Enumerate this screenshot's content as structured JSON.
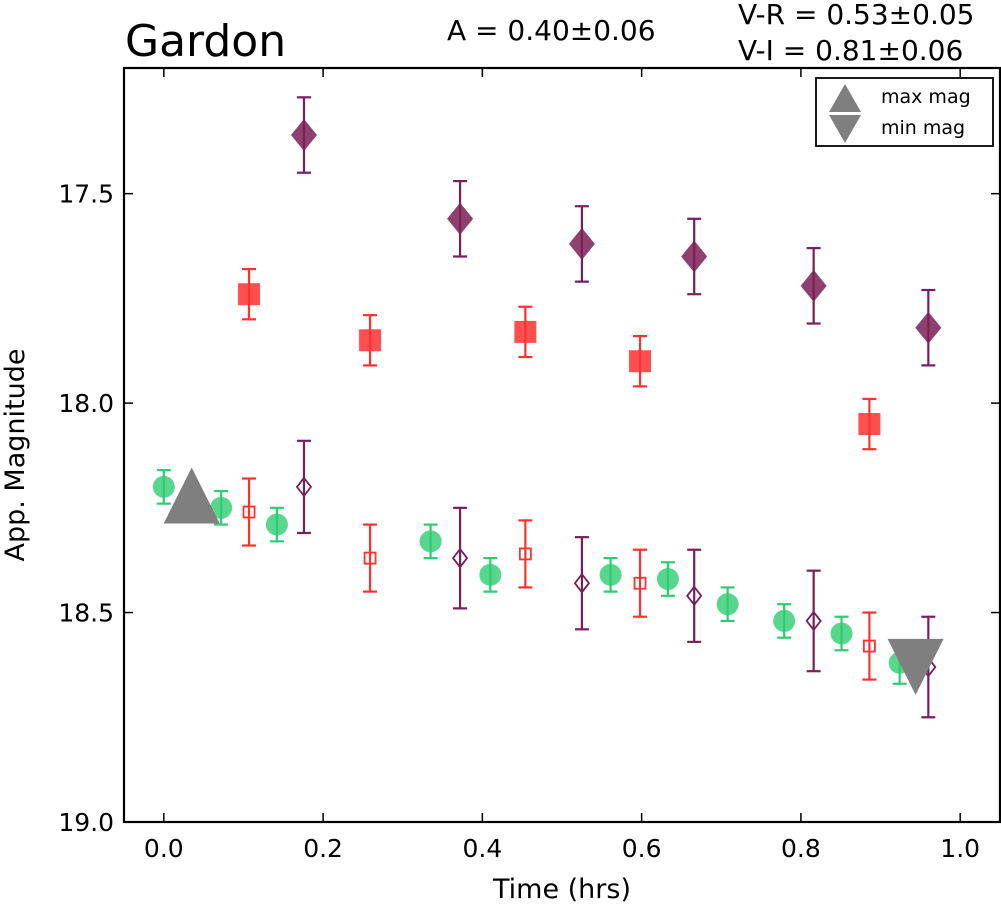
{
  "chart_data": {
    "type": "scatter",
    "title": "Gardon",
    "annotations": {
      "amplitude": "A  = 0.40±0.06",
      "v_r": "V-R = 0.53±0.05",
      "v_i": "V-I  = 0.81±0.06"
    },
    "xlabel": "Time (hrs)",
    "ylabel": "App. Magnitude",
    "xlim": [
      -0.05,
      1.05
    ],
    "ylim": [
      19.0,
      17.2
    ],
    "y_inverted": true,
    "xticks": [
      0.0,
      0.2,
      0.4,
      0.6,
      0.8,
      1.0
    ],
    "xtick_labels": [
      "0.0",
      "0.2",
      "0.4",
      "0.6",
      "0.8",
      "1.0"
    ],
    "yticks": [
      17.5,
      18.0,
      18.5,
      19.0
    ],
    "ytick_labels": [
      "17.5",
      "18.0",
      "18.5",
      "19.0"
    ],
    "grid": false,
    "legend": {
      "placement": "top-right",
      "entries": [
        {
          "label": "max mag",
          "marker": "triangle-up",
          "color": "#7f7f7f"
        },
        {
          "label": "min mag",
          "marker": "triangle-down",
          "color": "#7f7f7f"
        }
      ]
    },
    "series": [
      {
        "marker": "circle",
        "filled": true,
        "color": "#2ecc71",
        "x": [
          0.0,
          0.072,
          0.142,
          0.335,
          0.41,
          0.561,
          0.633,
          0.708,
          0.779,
          0.851,
          0.924
        ],
        "y": [
          18.2,
          18.25,
          18.29,
          18.33,
          18.41,
          18.41,
          18.42,
          18.48,
          18.52,
          18.55,
          18.62
        ],
        "err": [
          0.04,
          0.04,
          0.04,
          0.04,
          0.04,
          0.04,
          0.04,
          0.04,
          0.04,
          0.04,
          0.05
        ]
      },
      {
        "marker": "square",
        "filled": true,
        "color": "#ff3030",
        "x": [
          0.107,
          0.259,
          0.454,
          0.598,
          0.886
        ],
        "y": [
          17.74,
          17.85,
          17.83,
          17.9,
          18.05
        ],
        "err": [
          0.06,
          0.06,
          0.06,
          0.06,
          0.06
        ]
      },
      {
        "marker": "diamond",
        "filled": true,
        "color": "#7a1f55",
        "x": [
          0.176,
          0.372,
          0.525,
          0.666,
          0.816,
          0.96
        ],
        "y": [
          17.36,
          17.56,
          17.62,
          17.65,
          17.72,
          17.82
        ],
        "err": [
          0.09,
          0.09,
          0.09,
          0.09,
          0.09,
          0.09
        ]
      },
      {
        "marker": "square",
        "filled": false,
        "color": "#ff3030",
        "x": [
          0.107,
          0.259,
          0.454,
          0.598,
          0.886
        ],
        "y": [
          18.26,
          18.37,
          18.36,
          18.43,
          18.58
        ],
        "err": [
          0.08,
          0.08,
          0.08,
          0.08,
          0.08
        ]
      },
      {
        "marker": "diamond",
        "filled": false,
        "color": "#7a1f55",
        "x": [
          0.176,
          0.372,
          0.525,
          0.666,
          0.816,
          0.96
        ],
        "y": [
          18.2,
          18.37,
          18.43,
          18.46,
          18.52,
          18.63
        ],
        "err": [
          0.11,
          0.12,
          0.11,
          0.11,
          0.12,
          0.12
        ]
      }
    ],
    "extrema": [
      {
        "label": "max mag",
        "marker": "triangle-up",
        "color": "#7f7f7f",
        "x": 0.035,
        "y": 18.23
      },
      {
        "label": "min mag",
        "marker": "triangle-down",
        "color": "#7f7f7f",
        "x": 0.944,
        "y": 18.62
      }
    ]
  }
}
